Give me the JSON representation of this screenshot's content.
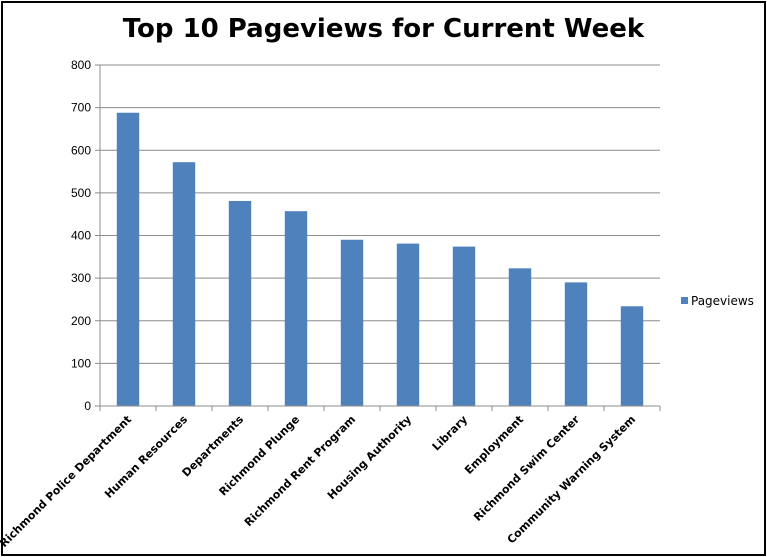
{
  "chart_data": {
    "type": "bar",
    "title": "Top 10 Pageviews for Current Week",
    "xlabel": "",
    "ylabel": "",
    "ylim": [
      0,
      800
    ],
    "yticks": [
      0,
      100,
      200,
      300,
      400,
      500,
      600,
      700,
      800
    ],
    "grid": true,
    "legend_position": "right",
    "categories": [
      "Richmond Police Department",
      "Human Resources",
      "Departments",
      "Richmond Plunge",
      "Richmond Rent Program",
      "Housing Authority",
      "Library",
      "Employment",
      "Richmond Swim Center",
      "Community Warning System"
    ],
    "series": [
      {
        "name": "Pageviews",
        "color": "#4f81bd",
        "values": [
          688,
          572,
          481,
          457,
          390,
          381,
          374,
          323,
          290,
          234
        ]
      }
    ]
  }
}
